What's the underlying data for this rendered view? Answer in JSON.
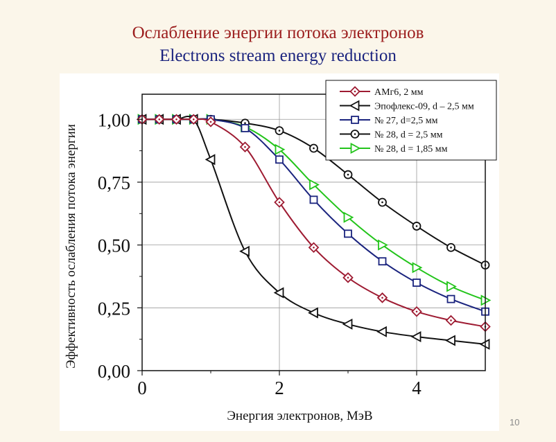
{
  "slide": {
    "title_ru": "Ослабление энергии потока электронов",
    "title_en": "Electrons stream energy reduction",
    "page_number": "10"
  },
  "chart_data": {
    "type": "line",
    "xlabel": "Энергия электронов, МэВ",
    "ylabel": "Эффективность ослабления потока энергии",
    "xlim": [
      0,
      5
    ],
    "ylim": [
      0,
      1.1
    ],
    "xticks": [
      0,
      2,
      4
    ],
    "xtick_labels": [
      "0",
      "2",
      "4"
    ],
    "yticks": [
      0,
      0.25,
      0.5,
      0.75,
      1.0
    ],
    "ytick_labels": [
      "0,00",
      "0,25",
      "0,50",
      "0,75",
      "1,00"
    ],
    "grid": true,
    "legend_position": "top-right",
    "series": [
      {
        "name": "АМг6, 2 мм",
        "marker": "diamond-dot",
        "color": "#9e1b32",
        "x": [
          0,
          0.25,
          0.5,
          0.75,
          1.0,
          1.5,
          2.0,
          2.5,
          3.0,
          3.5,
          4.0,
          4.5,
          5.0
        ],
        "y": [
          1.0,
          1.0,
          1.0,
          1.0,
          0.99,
          0.89,
          0.67,
          0.49,
          0.37,
          0.29,
          0.235,
          0.2,
          0.175
        ]
      },
      {
        "name": "Эпофлекс-09, d – 2,5 мм",
        "marker": "triangle-left",
        "color": "#111111",
        "x": [
          0,
          0.25,
          0.5,
          0.75,
          1.0,
          1.5,
          2.0,
          2.5,
          3.0,
          3.5,
          4.0,
          4.5,
          5.0
        ],
        "y": [
          1.0,
          1.0,
          1.0,
          1.0,
          0.84,
          0.475,
          0.31,
          0.23,
          0.185,
          0.155,
          0.135,
          0.12,
          0.105
        ]
      },
      {
        "name": "№ 27, d=2,5 мм",
        "marker": "square",
        "color": "#1a237e",
        "x": [
          0,
          0.25,
          0.5,
          0.75,
          1.0,
          1.5,
          2.0,
          2.5,
          3.0,
          3.5,
          4.0,
          4.5,
          5.0
        ],
        "y": [
          1.0,
          1.0,
          1.0,
          1.0,
          1.0,
          0.965,
          0.84,
          0.68,
          0.545,
          0.435,
          0.35,
          0.285,
          0.235
        ]
      },
      {
        "name": "№ 28, d = 2,5 мм",
        "marker": "circle-dot",
        "color": "#111111",
        "x": [
          0,
          0.25,
          0.5,
          0.75,
          1.0,
          1.5,
          2.0,
          2.5,
          3.0,
          3.5,
          4.0,
          4.5,
          5.0
        ],
        "y": [
          1.0,
          1.0,
          1.0,
          1.0,
          1.0,
          0.985,
          0.955,
          0.885,
          0.78,
          0.67,
          0.575,
          0.49,
          0.42
        ]
      },
      {
        "name": "№ 28, d = 1,85 мм",
        "marker": "triangle-right",
        "color": "#22c41a",
        "x": [
          0,
          0.25,
          0.5,
          0.75,
          1.0,
          1.5,
          2.0,
          2.5,
          3.0,
          3.5,
          4.0,
          4.5,
          5.0
        ],
        "y": [
          1.0,
          1.0,
          1.0,
          1.0,
          1.0,
          0.97,
          0.88,
          0.74,
          0.61,
          0.5,
          0.41,
          0.335,
          0.28
        ]
      }
    ]
  }
}
